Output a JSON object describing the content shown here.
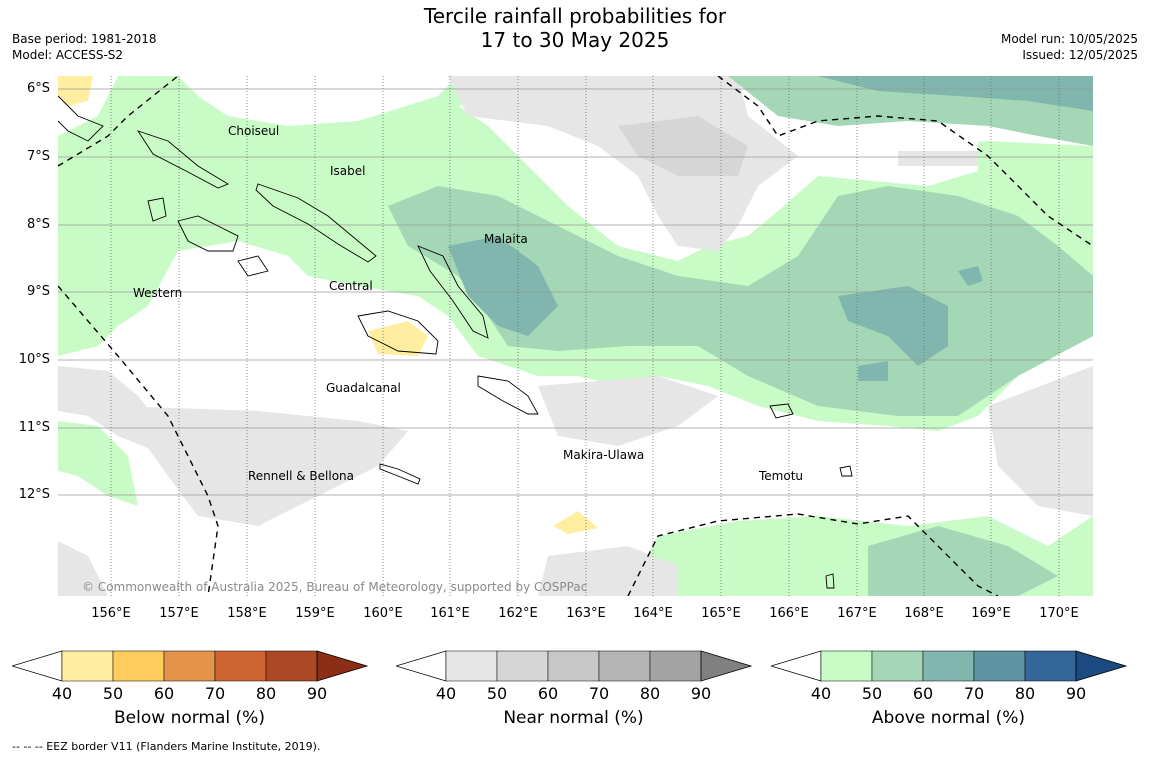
{
  "header": {
    "title_line1": "Tercile rainfall probabilities for",
    "title_line2": "17 to 30 May 2025",
    "base_period": "Base period: 1981-2018",
    "model": "Model: ACCESS-S2",
    "model_run": "Model run: 10/05/2025",
    "issued": "Issued: 12/05/2025"
  },
  "map": {
    "lat_labels": [
      "6°S",
      "7°S",
      "8°S",
      "9°S",
      "10°S",
      "11°S",
      "12°S"
    ],
    "lon_labels": [
      "156°E",
      "157°E",
      "158°E",
      "159°E",
      "160°E",
      "161°E",
      "162°E",
      "163°E",
      "164°E",
      "165°E",
      "166°E",
      "167°E",
      "168°E",
      "169°E",
      "170°E"
    ],
    "provinces": {
      "choiseul": "Choiseul",
      "isabel": "Isabel",
      "malaita": "Malaita",
      "western": "Western",
      "central": "Central",
      "guadalcanal": "Guadalcanal",
      "makira": "Makira-Ulawa",
      "rennell": "Rennell & Bellona",
      "temotu": "Temotu"
    },
    "copyright": "© Commonwealth of Australia 2025, Bureau of Meteorology, supported by COSPPac"
  },
  "colorbars": [
    {
      "label": "Below normal (%)",
      "ticks": [
        "40",
        "50",
        "60",
        "70",
        "80",
        "90"
      ],
      "colors": [
        "#ffeda0",
        "#fecc5c",
        "#e3944a",
        "#cf6533",
        "#ad4826",
        "#8c2d16"
      ]
    },
    {
      "label": "Near normal (%)",
      "ticks": [
        "40",
        "50",
        "60",
        "70",
        "80",
        "90"
      ],
      "colors": [
        "#e6e6e6",
        "#d6d6d6",
        "#c7c7c7",
        "#b5b5b5",
        "#a3a3a3",
        "#808080"
      ]
    },
    {
      "label": "Above normal (%)",
      "ticks": [
        "40",
        "50",
        "60",
        "70",
        "80",
        "90"
      ],
      "colors": [
        "#c9fbc6",
        "#a3d7b6",
        "#80b6ae",
        "#5f95a2",
        "#336699",
        "#1a4a80"
      ]
    }
  ],
  "legend_note": "-- -- -- EEZ border V11 (Flanders Marine Institute, 2019)."
}
